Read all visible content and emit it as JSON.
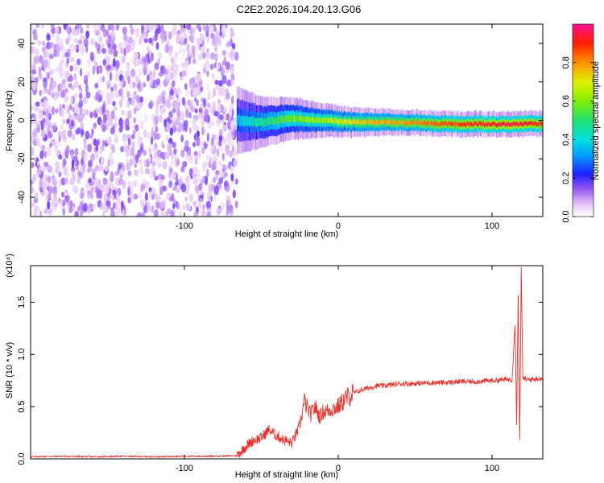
{
  "title": "C2E2.2026.104.20.13.G06",
  "chart_data": [
    {
      "type": "heatmap",
      "xlabel": "Height of straight line (km)",
      "ylabel": "Frequency (Hz)",
      "xlim": [
        -200,
        133
      ],
      "ylim": [
        -50,
        50
      ],
      "x_ticks": [
        -100,
        0,
        100
      ],
      "y_ticks": [
        -40,
        -20,
        0,
        20,
        40
      ],
      "colorbar": {
        "label": "Normalized spectral amplitude",
        "range": [
          0,
          1
        ],
        "ticks": [
          0.0,
          0.2,
          0.4,
          0.6,
          0.8
        ]
      },
      "noise_region_x": [
        -200,
        -66
      ],
      "ridge": [
        {
          "x": -66,
          "f": 0,
          "width": 8,
          "amp": 0.35
        },
        {
          "x": -50,
          "f": -1,
          "width": 6,
          "amp": 0.45
        },
        {
          "x": -30,
          "f": 1,
          "width": 5,
          "amp": 0.55
        },
        {
          "x": -10,
          "f": 0,
          "width": 4,
          "amp": 0.6
        },
        {
          "x": 10,
          "f": -1,
          "width": 3.5,
          "amp": 0.7
        },
        {
          "x": 40,
          "f": -1,
          "width": 3,
          "amp": 0.75
        },
        {
          "x": 80,
          "f": -2,
          "width": 3,
          "amp": 0.85
        },
        {
          "x": 115,
          "f": -2,
          "width": 3,
          "amp": 0.9
        },
        {
          "x": 133,
          "f": -1.5,
          "width": 3,
          "amp": 0.85
        }
      ]
    },
    {
      "type": "line",
      "xlabel": "Height of straight line (km)",
      "ylabel": "SNR (10 * v/v)",
      "y_multiplier": "(x10⁴)",
      "xlim": [
        -200,
        133
      ],
      "ylim": [
        0,
        1.85
      ],
      "x_ticks": [
        -100,
        0,
        100
      ],
      "y_ticks": [
        0.0,
        0.5,
        1.0,
        1.5
      ],
      "y_tick_labels": [
        "0.0",
        "0.5",
        "1.0",
        "1.5"
      ],
      "color": "#e8302a",
      "series": [
        {
          "x": [
            -200,
            -180,
            -160,
            -140,
            -120,
            -100,
            -80,
            -66,
            -60,
            -55,
            -50,
            -45,
            -40,
            -35,
            -30,
            -25,
            -22,
            -18,
            -15,
            -12,
            -10,
            -5,
            0,
            5,
            10,
            15,
            20,
            25,
            30,
            35,
            40,
            50,
            60,
            70,
            80,
            90,
            100,
            110,
            113,
            115,
            116,
            117,
            118,
            119,
            120,
            122,
            125,
            130,
            133
          ],
          "y": [
            0.02,
            0.025,
            0.02,
            0.025,
            0.02,
            0.025,
            0.025,
            0.03,
            0.12,
            0.18,
            0.2,
            0.28,
            0.22,
            0.18,
            0.15,
            0.32,
            0.55,
            0.42,
            0.5,
            0.4,
            0.45,
            0.47,
            0.5,
            0.58,
            0.63,
            0.66,
            0.68,
            0.7,
            0.7,
            0.71,
            0.72,
            0.72,
            0.73,
            0.73,
            0.74,
            0.74,
            0.75,
            0.76,
            0.76,
            1.3,
            0.35,
            1.55,
            0.2,
            1.82,
            0.78,
            0.76,
            0.76,
            0.77,
            0.77
          ]
        }
      ]
    }
  ]
}
